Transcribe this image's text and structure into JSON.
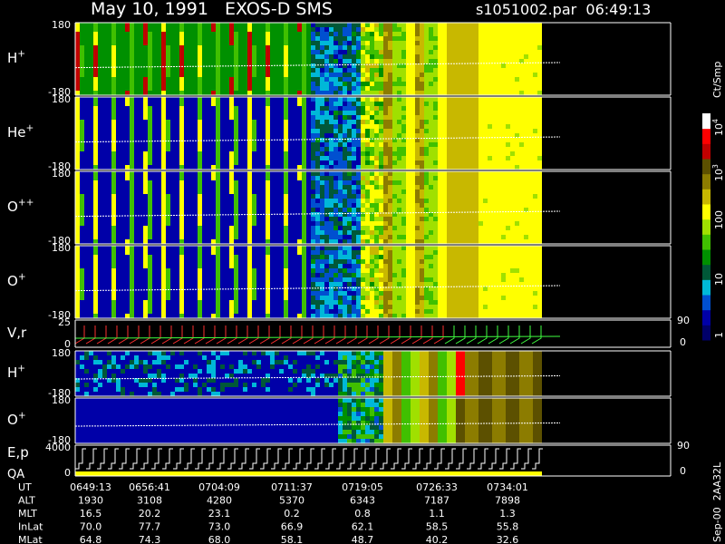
{
  "header": {
    "title": "May 10, 1991   EXOS-D SMS",
    "file": "s1051002.par  06:49:13"
  },
  "panels": [
    {
      "label": {
        "text": "H",
        "sup": "+"
      },
      "ticks": [
        "180",
        "-180"
      ]
    },
    {
      "label": {
        "text": "He",
        "sup": "+"
      },
      "ticks": [
        "180",
        "-180"
      ]
    },
    {
      "label": {
        "text": "O",
        "sup": "++"
      },
      "ticks": [
        "180",
        "-180"
      ]
    },
    {
      "label": {
        "text": "O",
        "sup": "+"
      },
      "ticks": [
        "180",
        "-180"
      ]
    },
    {
      "label": {
        "text": "V,r"
      },
      "ticks": [
        "25",
        "0"
      ],
      "right_ticks": [
        "90",
        "0"
      ]
    },
    {
      "label": {
        "text": "H",
        "sup": "+"
      },
      "ticks": [
        "180",
        "-180"
      ]
    },
    {
      "label": {
        "text": "O",
        "sup": "+"
      },
      "ticks": [
        "180",
        "-180"
      ]
    },
    {
      "label": {
        "text": "E,p"
      },
      "label2": "QA",
      "ticks": [
        "4000",
        "0"
      ],
      "right_ticks": [
        "90",
        "0"
      ]
    }
  ],
  "colorbar": {
    "unit": "Ct/Smp",
    "ticks": [
      {
        "text": "10",
        "sup": "4"
      },
      {
        "text": "10",
        "sup": "3"
      },
      {
        "text": "100"
      },
      {
        "text": "10"
      },
      {
        "text": "1"
      }
    ]
  },
  "table": {
    "rows": [
      {
        "name": "UT",
        "cells": [
          "0649:13",
          "0656:41",
          "0704:09",
          "0711:37",
          "0719:05",
          "0726:33",
          "0734:01"
        ]
      },
      {
        "name": "ALT",
        "cells": [
          "1930",
          "3108",
          "4280",
          "5370",
          "6343",
          "7187",
          "7898"
        ]
      },
      {
        "name": "MLT",
        "cells": [
          "16.5",
          "20.2",
          "23.1",
          "0.2",
          "0.8",
          "1.1",
          "1.3"
        ]
      },
      {
        "name": "InLat",
        "cells": [
          "70.0",
          "77.7",
          "73.0",
          "66.9",
          "62.1",
          "58.5",
          "55.8"
        ]
      },
      {
        "name": "MLat",
        "cells": [
          "64.8",
          "74.3",
          "68.0",
          "58.1",
          "48.7",
          "40.2",
          "32.6"
        ]
      }
    ]
  },
  "footer": "Sep-00  2AA32L"
}
